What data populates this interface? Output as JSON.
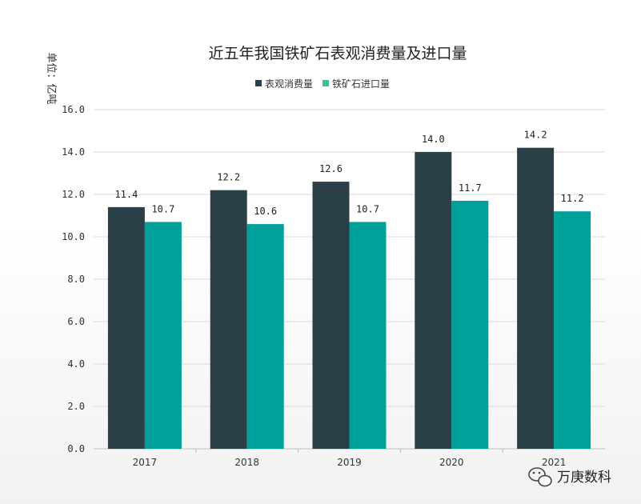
{
  "chart_data": {
    "type": "bar",
    "title": "近五年我国铁矿石表观消费量及进口量",
    "ylabel": "单位：亿吨",
    "xlabel": "",
    "categories": [
      "2017",
      "2018",
      "2019",
      "2020",
      "2021"
    ],
    "series": [
      {
        "name": "表观消费量",
        "values": [
          11.4,
          12.2,
          12.6,
          14.0,
          14.2
        ],
        "color": "#2b3f48"
      },
      {
        "name": "铁矿石进口量",
        "values": [
          10.7,
          10.6,
          10.7,
          11.7,
          11.2
        ],
        "color": "#00a19a"
      }
    ],
    "ylim": [
      0,
      16
    ],
    "yticks": [
      "0.0",
      "2.0",
      "4.0",
      "6.0",
      "8.0",
      "10.0",
      "12.0",
      "14.0",
      "16.0"
    ],
    "data_labels": [
      [
        "11.4",
        "12.2",
        "12.6",
        "14.0",
        "14.2"
      ],
      [
        "10.7",
        "10.6",
        "10.7",
        "11.7",
        "11.2"
      ]
    ],
    "grid": true,
    "legend_position": "top",
    "legend_colors": [
      "#2b3f48",
      "#3dbf8f"
    ]
  },
  "watermark": {
    "text": "万庚数科",
    "icon": "wechat-icon"
  }
}
